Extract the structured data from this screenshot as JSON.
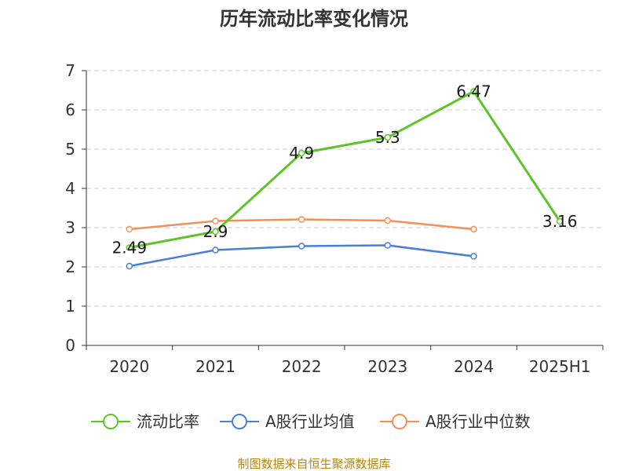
{
  "chart_data": {
    "type": "line",
    "title": "历年流动比率变化情况",
    "categories": [
      "2020",
      "2021",
      "2022",
      "2023",
      "2024",
      "2025H1"
    ],
    "y_ticks": [
      "0",
      "1",
      "2",
      "3",
      "4",
      "5",
      "6",
      "7"
    ],
    "ylim": [
      0,
      7
    ],
    "grid": true,
    "legend_position": "bottom",
    "series": [
      {
        "name": "流动比率",
        "color": "#5ec42a",
        "values": [
          2.49,
          2.9,
          4.9,
          5.3,
          6.47,
          3.16
        ],
        "labels": [
          "2.49",
          "2.9",
          "4.9",
          "5.3",
          "6.47",
          "3.16"
        ]
      },
      {
        "name": "A股行业均值",
        "color": "#4a7fd6",
        "values": [
          2.02,
          2.43,
          2.53,
          2.55,
          2.27,
          null
        ]
      },
      {
        "name": "A股行业中位数",
        "color": "#f2905a",
        "values": [
          2.96,
          3.17,
          3.21,
          3.18,
          2.96,
          null
        ]
      }
    ],
    "source": "制图数据来自恒生聚源数据库"
  }
}
